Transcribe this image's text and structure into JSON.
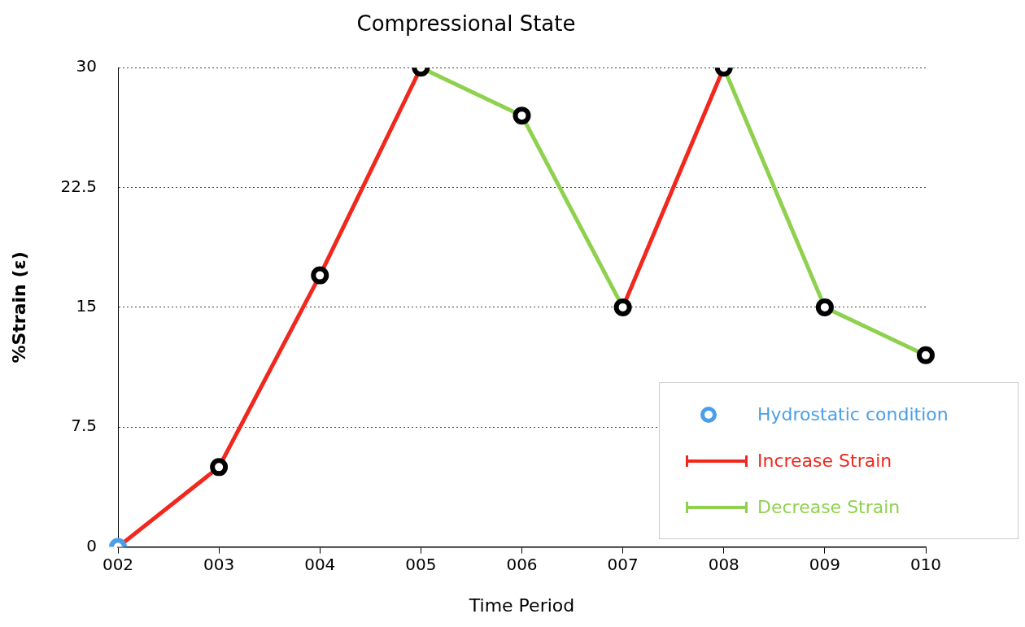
{
  "chart_data": {
    "type": "line",
    "title": "Compressional State",
    "xlabel": "Time Period",
    "ylabel": "%Strain (ε)",
    "categories": [
      "002",
      "003",
      "004",
      "005",
      "006",
      "007",
      "008",
      "009",
      "010"
    ],
    "series": [
      {
        "name": "Hydrostatic condition",
        "type": "scatter",
        "marker": "circle",
        "color": "#4a9fe8",
        "values": [
          0,
          null,
          null,
          null,
          null,
          null,
          null,
          null,
          null
        ]
      },
      {
        "name": "Increase Strain",
        "type": "line",
        "marker": "none",
        "color": "#f0281e",
        "values": [
          0,
          5,
          17,
          30,
          null,
          15,
          30,
          null,
          null
        ]
      },
      {
        "name": "Decrease Strain",
        "type": "line",
        "marker": "none",
        "color": "#8fd14f",
        "values": [
          null,
          null,
          null,
          30,
          27,
          15,
          null,
          null,
          null
        ]
      },
      {
        "type": "line",
        "marker": "none",
        "color": "#8fd14f",
        "values": [
          null,
          null,
          null,
          null,
          null,
          null,
          30,
          15,
          12
        ]
      },
      {
        "type": "scatter",
        "marker": "circle",
        "color": "#000000",
        "values": [
          null,
          5,
          17,
          30,
          27,
          15,
          30,
          15,
          12
        ]
      }
    ],
    "ylim": [
      0,
      30
    ],
    "yticks": [
      0,
      7.5,
      15,
      22.5,
      30
    ],
    "grid": "y",
    "legend": "bottom right",
    "line_style": "solid"
  }
}
